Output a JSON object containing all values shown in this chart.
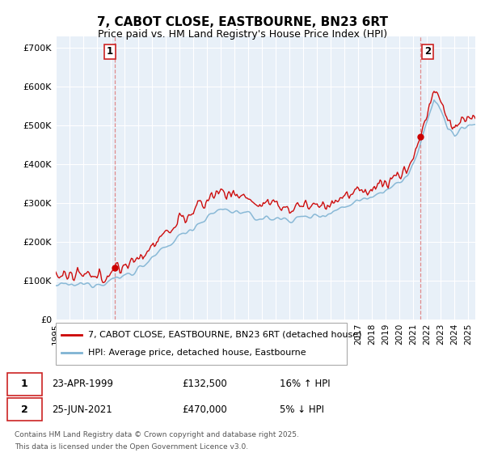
{
  "title": "7, CABOT CLOSE, EASTBOURNE, BN23 6RT",
  "subtitle": "Price paid vs. HM Land Registry's House Price Index (HPI)",
  "legend_line1": "7, CABOT CLOSE, EASTBOURNE, BN23 6RT (detached house)",
  "legend_line2": "HPI: Average price, detached house, Eastbourne",
  "annotation1_date": "23-APR-1999",
  "annotation1_price": "£132,500",
  "annotation1_hpi": "16% ↑ HPI",
  "annotation2_date": "25-JUN-2021",
  "annotation2_price": "£470,000",
  "annotation2_hpi": "5% ↓ HPI",
  "footer": "Contains HM Land Registry data © Crown copyright and database right 2025.\nThis data is licensed under the Open Government Licence v3.0.",
  "sale1_year": 1999.31,
  "sale1_price": 132500,
  "sale2_year": 2021.48,
  "sale2_price": 470000,
  "red_color": "#cc0000",
  "blue_color": "#7fb3d3",
  "vline_color": "#e08080",
  "chart_bg": "#e8f0f8",
  "background_color": "#ffffff",
  "grid_color": "#ffffff",
  "yticks": [
    0,
    100000,
    200000,
    300000,
    400000,
    500000,
    600000,
    700000
  ],
  "ylabels": [
    "£0",
    "£100K",
    "£200K",
    "£300K",
    "£400K",
    "£500K",
    "£600K",
    "£700K"
  ],
  "ylim_max": 730000,
  "ylim_min": 0,
  "xlim_min": 1995,
  "xlim_max": 2025.5
}
